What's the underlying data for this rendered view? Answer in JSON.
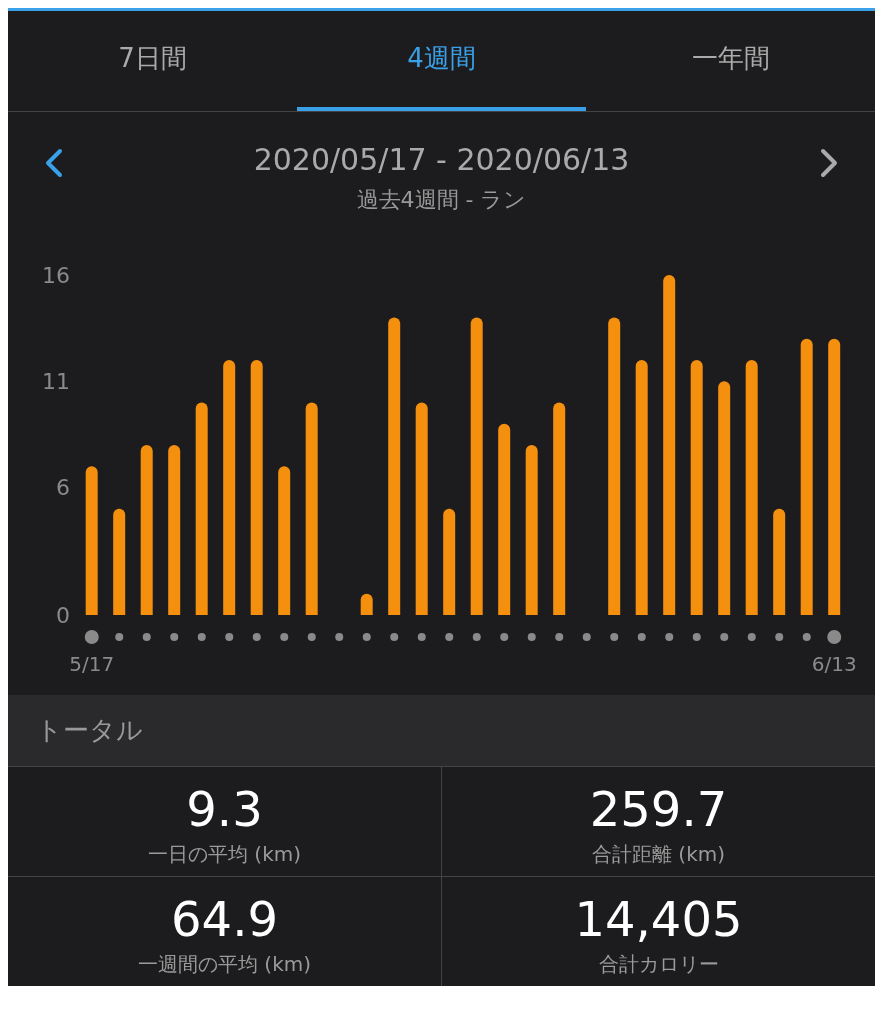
{
  "chart_data": {
    "type": "bar",
    "title": "2020/05/17 - 2020/06/13",
    "subtitle": "過去4週間 - ラン",
    "categories": [
      "5/17",
      null,
      null,
      null,
      null,
      null,
      null,
      null,
      null,
      null,
      null,
      null,
      null,
      null,
      null,
      null,
      null,
      null,
      null,
      null,
      null,
      null,
      null,
      null,
      null,
      null,
      null,
      "6/13"
    ],
    "values": [
      7,
      5,
      8,
      8,
      10,
      12,
      12,
      7,
      10,
      0,
      1,
      14,
      10,
      5,
      14,
      9,
      8,
      10,
      0,
      14,
      12,
      16,
      12,
      11,
      12,
      5,
      13,
      13
    ],
    "color": "#f5900f",
    "ylim": [
      0,
      16
    ],
    "yticks": [
      0,
      6,
      11,
      16
    ],
    "grid": false,
    "annotations": [
      "7日間",
      "4週間",
      "一年間",
      "トータル",
      "9.3",
      "一日の平均 (km)",
      "259.7",
      "合計距離 (km)",
      "64.9",
      "一週間の平均 (km)",
      "14,405",
      "合計カロリー"
    ]
  }
}
